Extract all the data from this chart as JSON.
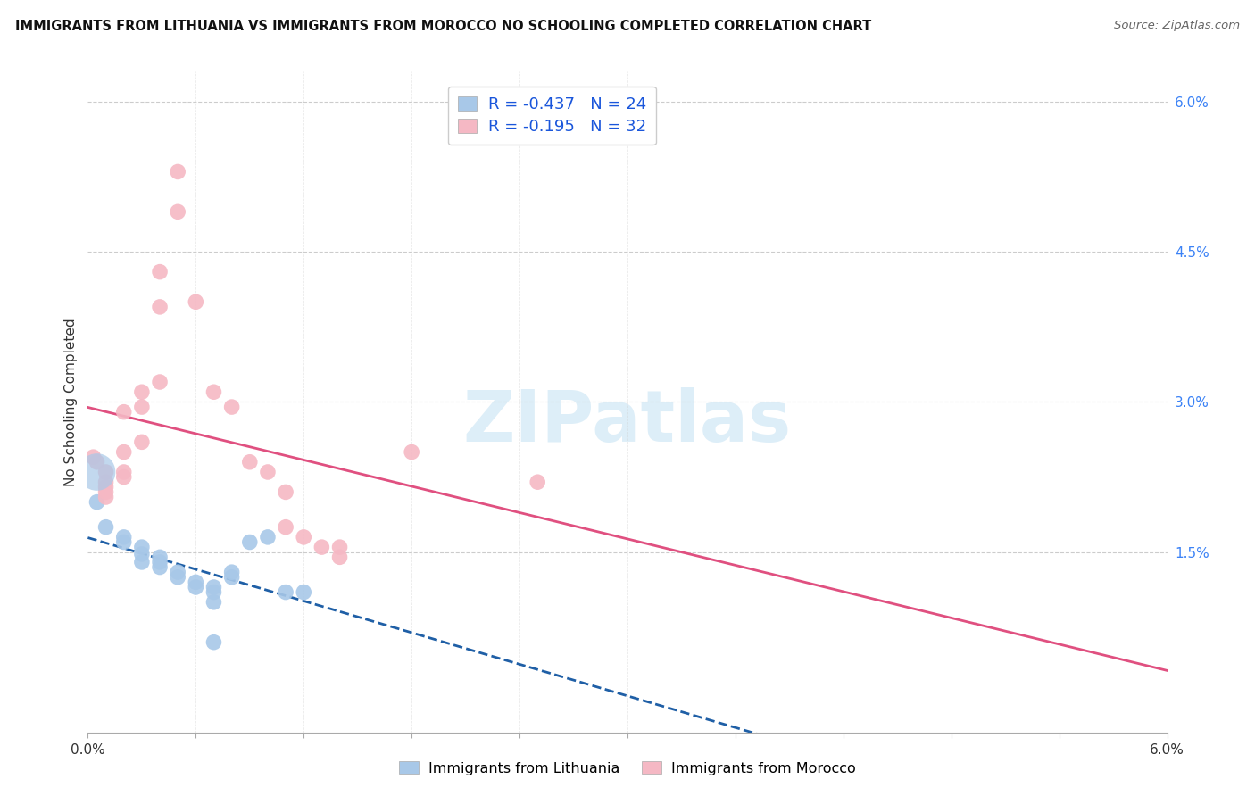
{
  "title": "IMMIGRANTS FROM LITHUANIA VS IMMIGRANTS FROM MOROCCO NO SCHOOLING COMPLETED CORRELATION CHART",
  "source": "Source: ZipAtlas.com",
  "ylabel": "No Schooling Completed",
  "xlim": [
    0.0,
    0.06
  ],
  "ylim": [
    -0.003,
    0.063
  ],
  "x_ticks": [
    0.0,
    0.006,
    0.012,
    0.018,
    0.024,
    0.03,
    0.036,
    0.042,
    0.048,
    0.054,
    0.06
  ],
  "y_ticks_right": [
    0.015,
    0.03,
    0.045,
    0.06
  ],
  "y_tick_labels_right": [
    "1.5%",
    "3.0%",
    "4.5%",
    "6.0%"
  ],
  "series_lithuania": {
    "color": "#a8c8e8",
    "line_color": "#1f5fa6",
    "line_style": "--",
    "points": [
      [
        0.0005,
        0.02
      ],
      [
        0.001,
        0.0175
      ],
      [
        0.002,
        0.0165
      ],
      [
        0.002,
        0.016
      ],
      [
        0.003,
        0.0155
      ],
      [
        0.003,
        0.0148
      ],
      [
        0.003,
        0.014
      ],
      [
        0.004,
        0.0145
      ],
      [
        0.004,
        0.014
      ],
      [
        0.004,
        0.0135
      ],
      [
        0.005,
        0.013
      ],
      [
        0.005,
        0.0125
      ],
      [
        0.006,
        0.012
      ],
      [
        0.006,
        0.0115
      ],
      [
        0.007,
        0.0115
      ],
      [
        0.007,
        0.011
      ],
      [
        0.007,
        0.01
      ],
      [
        0.007,
        0.006
      ],
      [
        0.008,
        0.013
      ],
      [
        0.008,
        0.0125
      ],
      [
        0.009,
        0.016
      ],
      [
        0.01,
        0.0165
      ],
      [
        0.011,
        0.011
      ],
      [
        0.012,
        0.011
      ]
    ]
  },
  "series_morocco": {
    "color": "#f5b8c4",
    "line_color": "#e05080",
    "line_style": "-",
    "points": [
      [
        0.0003,
        0.0245
      ],
      [
        0.0005,
        0.024
      ],
      [
        0.001,
        0.023
      ],
      [
        0.001,
        0.022
      ],
      [
        0.001,
        0.0215
      ],
      [
        0.001,
        0.021
      ],
      [
        0.001,
        0.0205
      ],
      [
        0.002,
        0.029
      ],
      [
        0.002,
        0.025
      ],
      [
        0.002,
        0.023
      ],
      [
        0.002,
        0.0225
      ],
      [
        0.003,
        0.031
      ],
      [
        0.003,
        0.0295
      ],
      [
        0.003,
        0.026
      ],
      [
        0.004,
        0.043
      ],
      [
        0.004,
        0.0395
      ],
      [
        0.004,
        0.032
      ],
      [
        0.005,
        0.053
      ],
      [
        0.005,
        0.049
      ],
      [
        0.006,
        0.04
      ],
      [
        0.007,
        0.031
      ],
      [
        0.008,
        0.0295
      ],
      [
        0.009,
        0.024
      ],
      [
        0.01,
        0.023
      ],
      [
        0.011,
        0.021
      ],
      [
        0.011,
        0.0175
      ],
      [
        0.012,
        0.0165
      ],
      [
        0.013,
        0.0155
      ],
      [
        0.014,
        0.0155
      ],
      [
        0.014,
        0.0145
      ],
      [
        0.018,
        0.025
      ],
      [
        0.025,
        0.022
      ]
    ]
  },
  "large_dot_lith": [
    0.0005,
    0.023
  ],
  "large_dot_size": 900,
  "background_color": "#ffffff",
  "grid_color": "#cccccc",
  "title_color": "#111111",
  "source_color": "#666666",
  "watermark_text": "ZIPatlas",
  "watermark_color": "#ddeef8",
  "lith_legend_label": "R = -0.437   N = 24",
  "mor_legend_label": "R = -0.195   N = 32",
  "lith_bottom_label": "Immigrants from Lithuania",
  "mor_bottom_label": "Immigrants from Morocco"
}
